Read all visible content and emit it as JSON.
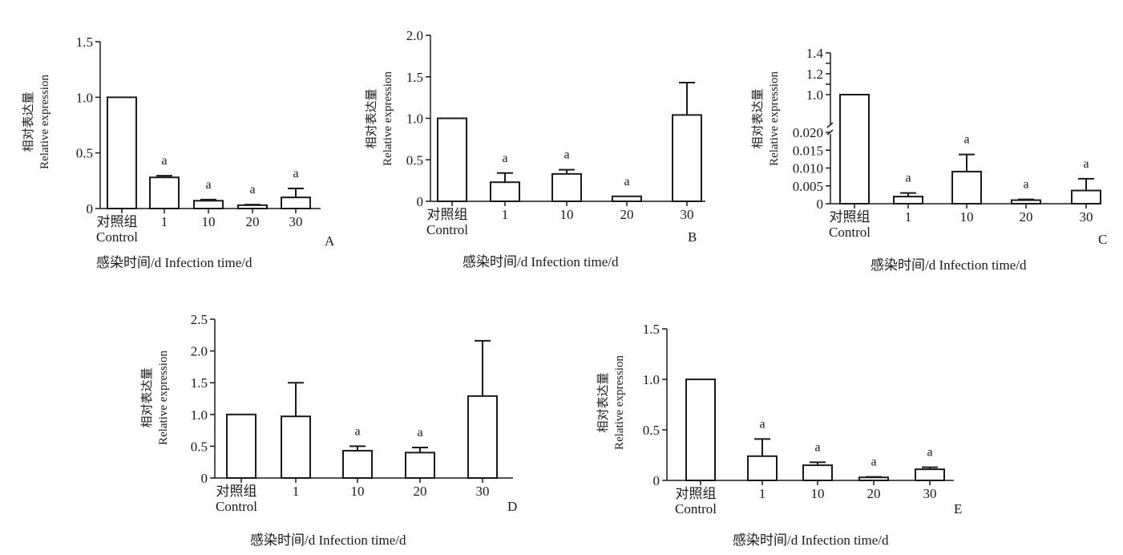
{
  "chart_data": [
    {
      "type": "bar",
      "panel_label": "A",
      "categories": [
        [
          "对照组",
          "Control"
        ],
        [
          "1"
        ],
        [
          "10"
        ],
        [
          "20"
        ],
        [
          "30"
        ]
      ],
      "values": [
        1.0,
        0.28,
        0.07,
        0.03,
        0.1
      ],
      "errors": [
        0,
        0.015,
        0.01,
        0.005,
        0.08
      ],
      "significance": [
        "",
        "a",
        "a",
        "a",
        "a"
      ],
      "ylabel": [
        "相对表达量",
        "Relative  expression"
      ],
      "xlabel": "感染时间/d    Infection  time/d",
      "ylim": [
        0,
        1.5
      ],
      "yticks": [
        0,
        0.5,
        1.0,
        1.5
      ],
      "ytick_labels": [
        "0",
        "0.5",
        "1.0",
        "1.5"
      ]
    },
    {
      "type": "bar",
      "panel_label": "B",
      "categories": [
        [
          "对照组",
          "Control"
        ],
        [
          "1"
        ],
        [
          "10"
        ],
        [
          "20"
        ],
        [
          "30"
        ]
      ],
      "values": [
        1.0,
        0.23,
        0.33,
        0.06,
        1.04
      ],
      "errors": [
        0,
        0.11,
        0.05,
        0.0,
        0.39
      ],
      "significance": [
        "",
        "a",
        "a",
        "a",
        ""
      ],
      "ylabel": [
        "相对表达量",
        "Relative  expression"
      ],
      "xlabel": "感染时间/d    Infection  time/d",
      "ylim": [
        0,
        2.0
      ],
      "yticks": [
        0,
        0.5,
        1.0,
        1.5,
        2.0
      ],
      "ytick_labels": [
        "0",
        "0.5",
        "1.0",
        "1.5",
        "2.0"
      ]
    },
    {
      "type": "bar",
      "panel_label": "C",
      "axis_break": true,
      "categories": [
        [
          "对照组",
          "Control"
        ],
        [
          "1"
        ],
        [
          "10"
        ],
        [
          "20"
        ],
        [
          "30"
        ]
      ],
      "values": [
        1.0,
        0.002,
        0.009,
        0.001,
        0.0037
      ],
      "errors": [
        0,
        0.001,
        0.0048,
        0.0002,
        0.0033
      ],
      "significance": [
        "",
        "a",
        "a",
        "a",
        "a"
      ],
      "ylabel": [
        "相对表达量",
        "Relative  expression"
      ],
      "xlabel": "感染时间/d    Infection  time/d",
      "ylim_lower": [
        0,
        0.02
      ],
      "ylim_upper": [
        1.0,
        1.4
      ],
      "yticks_lower": [
        0,
        0.005,
        0.01,
        0.015,
        0.02
      ],
      "ytick_labels_lower": [
        "0",
        "0.005",
        "0.010",
        "0.015",
        "0.020"
      ],
      "yticks_upper": [
        1.0,
        1.2,
        1.4
      ],
      "ytick_labels_upper": [
        "1.0",
        "1.2",
        "1.4"
      ]
    },
    {
      "type": "bar",
      "panel_label": "D",
      "categories": [
        [
          "对照组",
          "Control"
        ],
        [
          "1"
        ],
        [
          "10"
        ],
        [
          "20"
        ],
        [
          "30"
        ]
      ],
      "values": [
        1.0,
        0.97,
        0.43,
        0.4,
        1.29
      ],
      "errors": [
        0,
        0.53,
        0.07,
        0.08,
        0.87
      ],
      "significance": [
        "",
        "",
        "a",
        "a",
        ""
      ],
      "ylabel": [
        "相对表达量",
        "Relative  expression"
      ],
      "xlabel": "感染时间/d    Infection  time/d",
      "ylim": [
        0,
        2.5
      ],
      "yticks": [
        0,
        0.5,
        1.0,
        1.5,
        2.0,
        2.5
      ],
      "ytick_labels": [
        "0",
        "0.5",
        "1.0",
        "1.5",
        "2.0",
        "2.5"
      ]
    },
    {
      "type": "bar",
      "panel_label": "E",
      "categories": [
        [
          "对照组",
          "Control"
        ],
        [
          "1"
        ],
        [
          "10"
        ],
        [
          "20"
        ],
        [
          "30"
        ]
      ],
      "values": [
        1.0,
        0.24,
        0.15,
        0.03,
        0.11
      ],
      "errors": [
        0,
        0.17,
        0.03,
        0.005,
        0.02
      ],
      "significance": [
        "",
        "a",
        "a",
        "a",
        "a"
      ],
      "ylabel": [
        "相对表达量",
        "Relative  expression"
      ],
      "xlabel": "感染时间/d    Infection  time/d",
      "ylim": [
        0,
        1.5
      ],
      "yticks": [
        0,
        0.5,
        1.0,
        1.5
      ],
      "ytick_labels": [
        "0",
        "0.5",
        "1.0",
        "1.5"
      ]
    }
  ]
}
